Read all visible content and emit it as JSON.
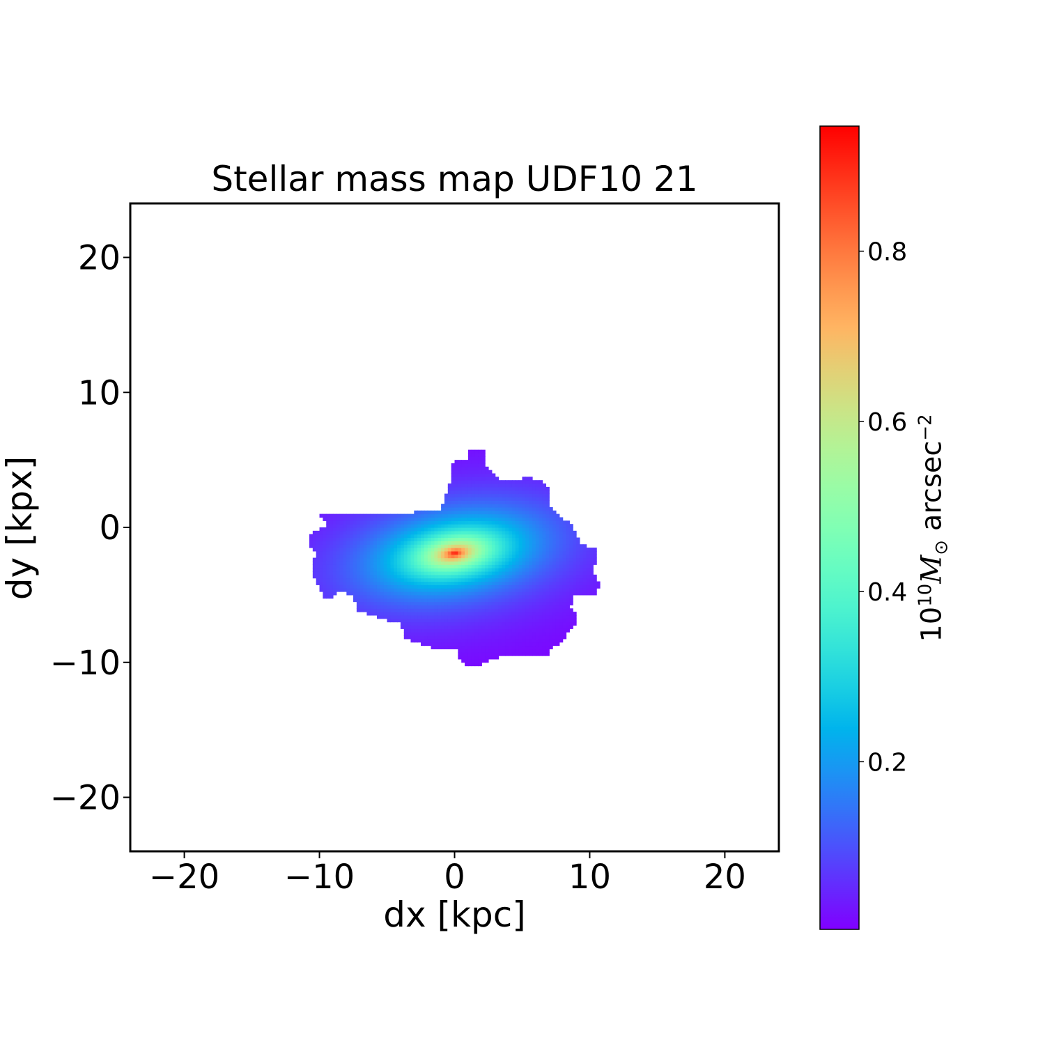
{
  "chart_data": {
    "type": "heatmap",
    "title": "Stellar mass map UDF10 21",
    "xlabel": "dx [kpc]",
    "ylabel": "dy [kpx]",
    "xlim": [
      -24,
      24
    ],
    "ylim": [
      -24,
      24
    ],
    "xticks": [
      -20,
      -10,
      0,
      10,
      20
    ],
    "yticks": [
      -20,
      -10,
      0,
      10,
      20
    ],
    "xtick_labels": [
      "−20",
      "−10",
      "0",
      "10",
      "20"
    ],
    "ytick_labels": [
      "−20",
      "−10",
      "0",
      "10",
      "20"
    ],
    "colormap": "rainbow",
    "colorbar": {
      "label_base": "10",
      "label_exp": "10",
      "label_symbol": "M",
      "label_sub": "⊙",
      "label_unit": " arcsec",
      "label_unit_exp": "−2",
      "vmin": 0.003,
      "vmax": 0.947,
      "ticks": [
        0.2,
        0.4,
        0.6,
        0.8
      ],
      "tick_labels": [
        "0.2",
        "0.4",
        "0.6",
        "0.8"
      ]
    },
    "peak": {
      "x": 0.0,
      "y": -1.9,
      "value": 0.947
    },
    "source_outline_kpc": [
      [
        1.1,
        5.7
      ],
      [
        2.3,
        5.7
      ],
      [
        2.3,
        4.6
      ],
      [
        3.0,
        3.8
      ],
      [
        3.4,
        3.5
      ],
      [
        5.0,
        3.5
      ],
      [
        5.0,
        3.8
      ],
      [
        5.7,
        3.8
      ],
      [
        5.7,
        3.5
      ],
      [
        6.4,
        3.5
      ],
      [
        7.0,
        3.0
      ],
      [
        7.1,
        1.4
      ],
      [
        7.5,
        1.2
      ],
      [
        8.0,
        0.7
      ],
      [
        8.7,
        0.2
      ],
      [
        9.3,
        -1.1
      ],
      [
        9.9,
        -1.4
      ],
      [
        10.5,
        -1.4
      ],
      [
        10.5,
        -2.7
      ],
      [
        10.1,
        -2.9
      ],
      [
        10.5,
        -3.7
      ],
      [
        10.7,
        -4.2
      ],
      [
        10.5,
        -4.9
      ],
      [
        8.7,
        -5.0
      ],
      [
        8.6,
        -6.0
      ],
      [
        8.9,
        -6.3
      ],
      [
        8.9,
        -7.3
      ],
      [
        8.4,
        -7.8
      ],
      [
        7.9,
        -8.4
      ],
      [
        7.1,
        -9.1
      ],
      [
        6.9,
        -9.6
      ],
      [
        5.6,
        -9.6
      ],
      [
        5.6,
        -9.4
      ],
      [
        4.5,
        -9.6
      ],
      [
        3.3,
        -9.6
      ],
      [
        2.5,
        -9.9
      ],
      [
        1.7,
        -10.3
      ],
      [
        0.9,
        -10.3
      ],
      [
        0.4,
        -9.9
      ],
      [
        0.2,
        -9.1
      ],
      [
        -1.7,
        -8.9
      ],
      [
        -2.7,
        -8.6
      ],
      [
        -3.7,
        -8.1
      ],
      [
        -4.0,
        -7.1
      ],
      [
        -5.3,
        -6.8
      ],
      [
        -5.8,
        -6.6
      ],
      [
        -6.9,
        -6.2
      ],
      [
        -7.3,
        -6.3
      ],
      [
        -7.4,
        -5.1
      ],
      [
        -7.7,
        -5.1
      ],
      [
        -8.5,
        -4.6
      ],
      [
        -8.9,
        -5.1
      ],
      [
        -9.6,
        -5.3
      ],
      [
        -9.9,
        -4.6
      ],
      [
        -10.2,
        -4.0
      ],
      [
        -10.4,
        -3.7
      ],
      [
        -10.6,
        -3.2
      ],
      [
        -10.6,
        -2.6
      ],
      [
        -10.2,
        -1.9
      ],
      [
        -10.5,
        -1.7
      ],
      [
        -10.8,
        -1.1
      ],
      [
        -10.8,
        -0.6
      ],
      [
        -10.2,
        -0.2
      ],
      [
        -9.6,
        0.0
      ],
      [
        -9.5,
        0.3
      ],
      [
        -9.9,
        0.7
      ],
      [
        -9.9,
        1.1
      ],
      [
        -2.9,
        1.1
      ],
      [
        -2.9,
        1.3
      ],
      [
        -1.1,
        1.3
      ],
      [
        -0.8,
        1.9
      ],
      [
        -0.6,
        2.5
      ],
      [
        -0.4,
        3.0
      ],
      [
        -0.3,
        4.3
      ],
      [
        0.0,
        5.0
      ],
      [
        1.0,
        5.0
      ],
      [
        1.1,
        5.7
      ]
    ]
  }
}
